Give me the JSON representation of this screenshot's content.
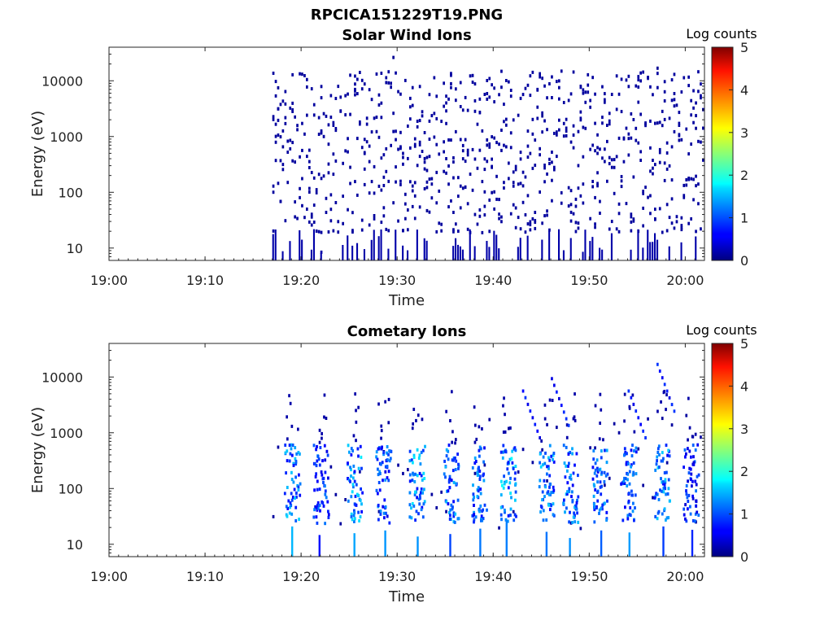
{
  "figure_title": "RPCICA151229T19.PNG",
  "chart_data": [
    {
      "type": "heatmap",
      "title": "Solar Wind Ions",
      "xlabel": "Time",
      "ylabel": "Energy (eV)",
      "y_scale": "log",
      "ylim": [
        6,
        40000
      ],
      "xlim": [
        "19:00",
        "20:02"
      ],
      "x_ticks": [
        "19:00",
        "19:10",
        "19:20",
        "19:30",
        "19:40",
        "19:50",
        "20:00"
      ],
      "y_ticks": [
        "10",
        "100",
        "1000",
        "10000"
      ],
      "y_tick_values": [
        10,
        100,
        1000,
        10000
      ],
      "colorbar": {
        "label": "Log counts",
        "range": [
          0,
          5
        ],
        "ticks": [
          "0",
          "1",
          "2",
          "3",
          "4",
          "5"
        ],
        "colormap": "jet"
      },
      "data_start": "19:17",
      "data_end": "20:02",
      "note_visual": "sparse low-count (about 0-0.5 log counts) detections scattered across energies 6 eV - 30 keV",
      "sample_points": [
        {
          "t": "19:17.5",
          "e": 8000,
          "v": 0.1
        },
        {
          "t": "19:18",
          "e": 700,
          "v": 0.1
        },
        {
          "t": "19:20",
          "e": 14000,
          "v": 0.1
        },
        {
          "t": "19:22",
          "e": 9,
          "v": 0.2
        },
        {
          "t": "19:25",
          "e": 300,
          "v": 0.1
        },
        {
          "t": "19:29.5",
          "e": 28000,
          "v": 0.1
        },
        {
          "t": "19:33",
          "e": 50,
          "v": 0.1
        },
        {
          "t": "19:45",
          "e": 2500,
          "v": 0.1
        },
        {
          "t": "19:57",
          "e": 18000,
          "v": 0.1
        },
        {
          "t": "20:01",
          "e": 1500,
          "v": 0.1
        }
      ]
    },
    {
      "type": "heatmap",
      "title": "Cometary Ions",
      "xlabel": "Time",
      "ylabel": "Energy (eV)",
      "y_scale": "log",
      "ylim": [
        6,
        40000
      ],
      "xlim": [
        "19:00",
        "20:02"
      ],
      "x_ticks": [
        "19:00",
        "19:10",
        "19:20",
        "19:30",
        "19:40",
        "19:50",
        "20:00"
      ],
      "y_ticks": [
        "10",
        "100",
        "1000",
        "10000"
      ],
      "y_tick_values": [
        10,
        100,
        1000,
        10000
      ],
      "colorbar": {
        "label": "Log counts",
        "range": [
          0,
          5
        ],
        "ticks": [
          "0",
          "1",
          "2",
          "3",
          "4",
          "5"
        ],
        "colormap": "jet"
      },
      "data_start": "19:17",
      "data_end": "20:02",
      "bursts": [
        {
          "t": "19:19",
          "peak_log_counts": 1.7
        },
        {
          "t": "19:22",
          "peak_log_counts": 1.3
        },
        {
          "t": "19:25.5",
          "peak_log_counts": 1.8
        },
        {
          "t": "19:28.5",
          "peak_log_counts": 1.4
        },
        {
          "t": "19:32",
          "peak_log_counts": 1.8
        },
        {
          "t": "19:35.5",
          "peak_log_counts": 1.6
        },
        {
          "t": "19:38.5",
          "peak_log_counts": 1.5
        },
        {
          "t": "19:41.5",
          "peak_log_counts": 1.9
        },
        {
          "t": "19:45.5",
          "peak_log_counts": 1.7
        },
        {
          "t": "19:48",
          "peak_log_counts": 1.6
        },
        {
          "t": "19:51",
          "peak_log_counts": 1.5
        },
        {
          "t": "19:54",
          "peak_log_counts": 1.4
        },
        {
          "t": "19:57.5",
          "peak_log_counts": 1.7
        },
        {
          "t": "20:00.5",
          "peak_log_counts": 1.2
        }
      ],
      "rising_arcs": [
        {
          "t": "19:43",
          "e": 6000
        },
        {
          "t": "19:46",
          "e": 10000
        },
        {
          "t": "19:54",
          "e": 6000
        },
        {
          "t": "19:57",
          "e": 18000
        }
      ]
    }
  ]
}
